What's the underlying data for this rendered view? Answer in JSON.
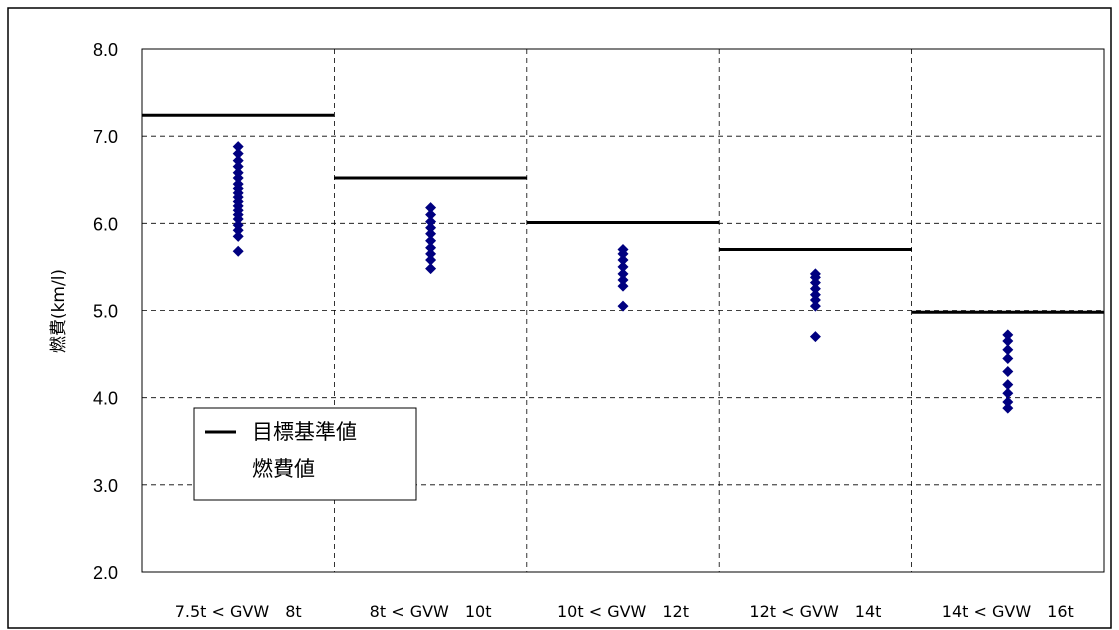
{
  "chart_data": {
    "type": "scatter",
    "ylabel": "燃費(km/l)",
    "ylim": [
      2.0,
      8.0
    ],
    "yticks": [
      "2.0",
      "3.0",
      "4.0",
      "5.0",
      "6.0",
      "7.0",
      "8.0"
    ],
    "grid": true,
    "legend_position": "bottom-left",
    "categories": [
      "7.5t < GVW　8t",
      "8t < GVW　10t",
      "10t < GVW　12t",
      "12t < GVW　14t",
      "14t < GVW　16t"
    ],
    "series": [
      {
        "name": "目標基準値",
        "marker": "line",
        "color": "#000000",
        "values": [
          7.24,
          6.52,
          6.01,
          5.7,
          4.98
        ]
      },
      {
        "name": "燃費値",
        "marker": "diamond",
        "color": "#000080",
        "values": [
          [
            5.68,
            5.85,
            5.92,
            5.98,
            6.05,
            6.1,
            6.15,
            6.2,
            6.25,
            6.3,
            6.35,
            6.4,
            6.45,
            6.52,
            6.58,
            6.65,
            6.72,
            6.8,
            6.88
          ],
          [
            5.48,
            5.58,
            5.65,
            5.72,
            5.8,
            5.88,
            5.95,
            6.02,
            6.1,
            6.18
          ],
          [
            5.05,
            5.28,
            5.35,
            5.42,
            5.5,
            5.58,
            5.65,
            5.7
          ],
          [
            4.7,
            5.05,
            5.12,
            5.18,
            5.25,
            5.32,
            5.38,
            5.42
          ],
          [
            3.88,
            3.95,
            4.05,
            4.15,
            4.3,
            4.45,
            4.55,
            4.65,
            4.72
          ]
        ]
      }
    ]
  }
}
